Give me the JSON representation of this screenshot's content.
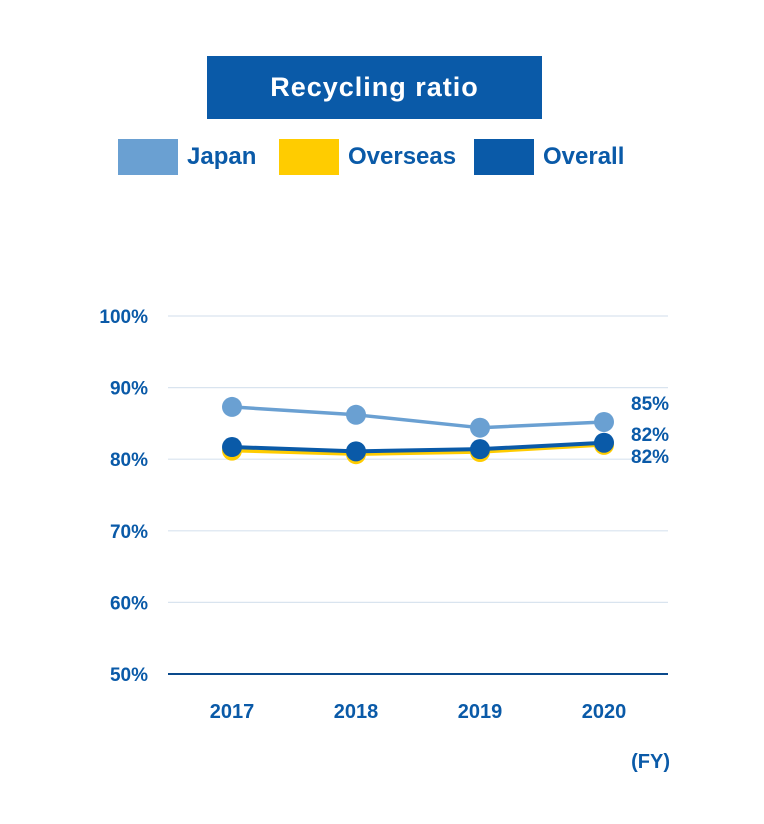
{
  "colors": {
    "accent": "#0a5aa8",
    "japan": "#6aa0d2",
    "overseas": "#ffcc00",
    "overall": "#0a5aa8",
    "grid": "#d9e4ef",
    "axis": "#0a4a8c"
  },
  "chart_data": {
    "type": "line",
    "title": "Recycling ratio",
    "x_unit_label": "(FY)",
    "categories": [
      "2017",
      "2018",
      "2019",
      "2020"
    ],
    "y_ticks": [
      "100%",
      "90%",
      "80%",
      "70%",
      "60%",
      "50%"
    ],
    "ylim": [
      50,
      100
    ],
    "grid": true,
    "legend_position": "top",
    "series": [
      {
        "name": "Japan",
        "color_key": "japan",
        "values": [
          87.3,
          86.2,
          84.4,
          85.2
        ],
        "end_label": "85%"
      },
      {
        "name": "Overseas",
        "color_key": "overseas",
        "values": [
          81.2,
          80.7,
          81.0,
          82.0
        ],
        "end_label": "82%"
      },
      {
        "name": "Overall",
        "color_key": "overall",
        "values": [
          81.7,
          81.1,
          81.4,
          82.3
        ],
        "end_label": "82%"
      }
    ]
  }
}
